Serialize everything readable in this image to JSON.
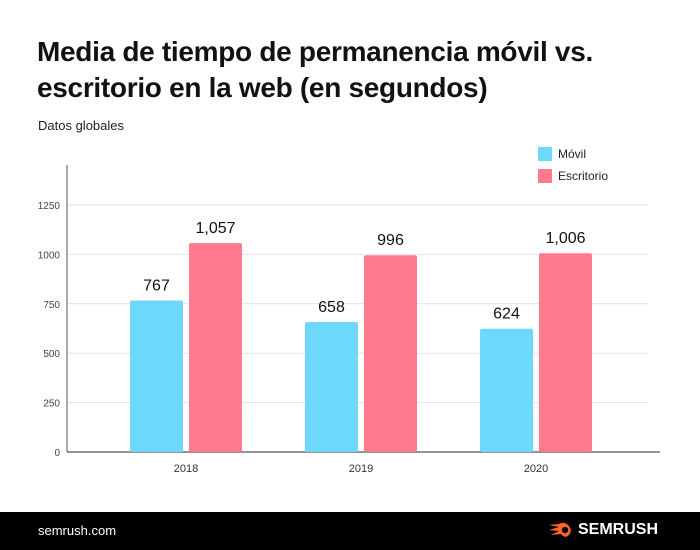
{
  "header": {
    "title": "Media de tiempo de permanencia móvil vs. escritorio en la web (en segundos)",
    "subtitle": "Datos globales"
  },
  "chart_data": {
    "type": "bar",
    "title": "Media de tiempo de permanencia móvil vs. escritorio en la web (en segundos)",
    "subtitle": "Datos globales",
    "categories": [
      "2018",
      "2019",
      "2020"
    ],
    "series": [
      {
        "name": "Móvil",
        "values": [
          767,
          658,
          624
        ],
        "labels": [
          "767",
          "658",
          "624"
        ],
        "color": "#6dd8fb"
      },
      {
        "name": "Escritorio",
        "values": [
          1057,
          996,
          1006
        ],
        "labels": [
          "1,057",
          "996",
          "1,006"
        ],
        "color": "#ff7a8e"
      }
    ],
    "yticks": [
      "0",
      "250",
      "500",
      "750",
      "1000",
      "1250"
    ],
    "ylim": [
      0,
      1250
    ],
    "grid": true,
    "legend": "top-right",
    "xlabel": "",
    "ylabel": ""
  },
  "footer": {
    "site": "semrush.com",
    "brand": "SEMRUSH",
    "brand_color": "#ff642d"
  }
}
